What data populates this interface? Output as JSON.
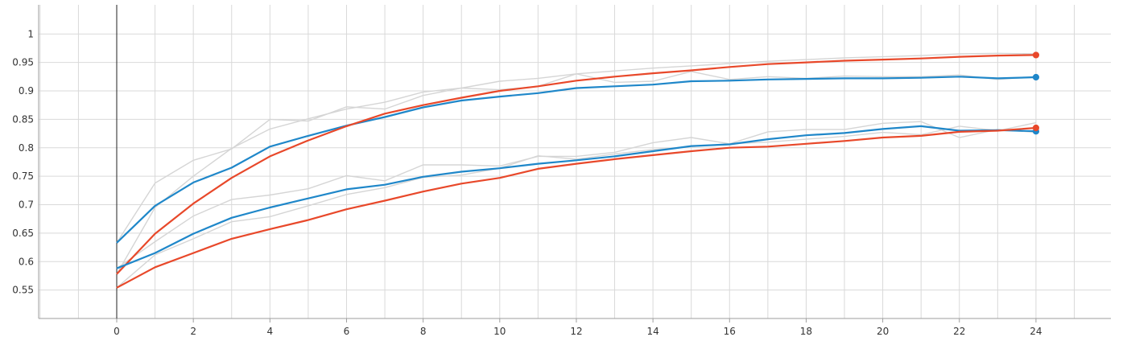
{
  "chart_data": {
    "type": "line",
    "xlabel": "",
    "ylabel": "",
    "xlim": [
      -2,
      25
    ],
    "ylim": [
      0.5,
      1.05
    ],
    "x_ticks": [
      0,
      2,
      4,
      6,
      8,
      10,
      12,
      14,
      16,
      18,
      20,
      22,
      24
    ],
    "y_ticks": [
      0.55,
      0.6,
      0.65,
      0.7,
      0.75,
      0.8,
      0.85,
      0.9,
      0.95,
      1
    ],
    "grid": true,
    "colors": {
      "blue": "#1f87c9",
      "orange": "#e8482a",
      "raw": "#d5d5d5"
    },
    "series": [
      {
        "color": "blue",
        "x": [
          0,
          1,
          2,
          3,
          4,
          5,
          6,
          7,
          8,
          9,
          10,
          11,
          12,
          13,
          14,
          15,
          16,
          17,
          18,
          19,
          20,
          21,
          22,
          23,
          24
        ],
        "values": [
          0.633,
          0.698,
          0.739,
          0.765,
          0.802,
          0.821,
          0.839,
          0.854,
          0.871,
          0.883,
          0.89,
          0.896,
          0.905,
          0.908,
          0.911,
          0.917,
          0.918,
          0.92,
          0.921,
          0.922,
          0.922,
          0.923,
          0.925,
          0.922,
          0.924
        ],
        "raw": [
          0.633,
          0.738,
          0.778,
          0.798,
          0.85,
          0.847,
          0.872,
          0.868,
          0.892,
          0.905,
          0.902,
          0.908,
          0.93,
          0.915,
          0.917,
          0.934,
          0.92,
          0.925,
          0.922,
          0.926,
          0.925,
          0.925,
          0.928,
          0.92,
          0.925
        ]
      },
      {
        "color": "orange",
        "x": [
          0,
          1,
          2,
          3,
          4,
          5,
          6,
          7,
          8,
          9,
          10,
          11,
          12,
          13,
          14,
          15,
          16,
          17,
          18,
          19,
          20,
          21,
          22,
          23,
          24
        ],
        "values": [
          0.578,
          0.649,
          0.702,
          0.747,
          0.785,
          0.813,
          0.838,
          0.86,
          0.875,
          0.888,
          0.9,
          0.908,
          0.918,
          0.925,
          0.931,
          0.936,
          0.942,
          0.947,
          0.95,
          0.953,
          0.955,
          0.957,
          0.96,
          0.962,
          0.963
        ],
        "raw": [
          0.578,
          0.695,
          0.75,
          0.799,
          0.833,
          0.851,
          0.868,
          0.88,
          0.898,
          0.905,
          0.917,
          0.922,
          0.93,
          0.935,
          0.94,
          0.944,
          0.948,
          0.952,
          0.955,
          0.958,
          0.96,
          0.962,
          0.965,
          0.966,
          0.965
        ]
      },
      {
        "color": "blue",
        "x": [
          0,
          1,
          2,
          3,
          4,
          5,
          6,
          7,
          8,
          9,
          10,
          11,
          12,
          13,
          14,
          15,
          16,
          17,
          18,
          19,
          20,
          21,
          22,
          23,
          24
        ],
        "values": [
          0.588,
          0.615,
          0.649,
          0.677,
          0.695,
          0.711,
          0.727,
          0.735,
          0.749,
          0.758,
          0.764,
          0.772,
          0.778,
          0.785,
          0.794,
          0.803,
          0.806,
          0.815,
          0.822,
          0.826,
          0.833,
          0.838,
          0.83,
          0.831,
          0.829
        ],
        "raw": [
          0.588,
          0.635,
          0.68,
          0.709,
          0.717,
          0.728,
          0.751,
          0.742,
          0.77,
          0.77,
          0.768,
          0.785,
          0.785,
          0.792,
          0.809,
          0.818,
          0.807,
          0.828,
          0.832,
          0.832,
          0.843,
          0.846,
          0.818,
          0.832,
          0.827
        ]
      },
      {
        "color": "orange",
        "x": [
          0,
          1,
          2,
          3,
          4,
          5,
          6,
          7,
          8,
          9,
          10,
          11,
          12,
          13,
          14,
          15,
          16,
          17,
          18,
          19,
          20,
          21,
          22,
          23,
          24
        ],
        "values": [
          0.554,
          0.59,
          0.615,
          0.64,
          0.657,
          0.673,
          0.692,
          0.707,
          0.723,
          0.737,
          0.747,
          0.763,
          0.772,
          0.78,
          0.787,
          0.794,
          0.8,
          0.802,
          0.807,
          0.812,
          0.818,
          0.821,
          0.828,
          0.83,
          0.835
        ],
        "raw": [
          0.554,
          0.612,
          0.64,
          0.67,
          0.679,
          0.698,
          0.718,
          0.73,
          0.748,
          0.752,
          0.764,
          0.786,
          0.78,
          0.789,
          0.797,
          0.802,
          0.807,
          0.81,
          0.815,
          0.82,
          0.827,
          0.823,
          0.838,
          0.83,
          0.844
        ]
      }
    ]
  }
}
